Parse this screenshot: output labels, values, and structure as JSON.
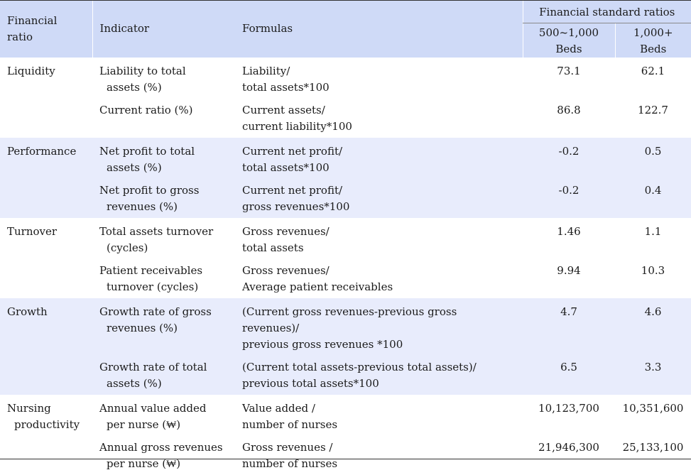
{
  "header": {
    "financial_ratio": "Financial ratio",
    "indicator": "Indicator",
    "formulas": "Formulas",
    "standard_group": "Financial standard ratios",
    "col_500_line1": "500~1,000",
    "col_500_line2": "Beds",
    "col_1000_line1": "1,000+",
    "col_1000_line2": "Beds"
  },
  "groups": [
    {
      "ratio": [
        "Liquidity",
        ""
      ],
      "rows": [
        {
          "indicator": [
            "Liability to total",
            "assets (%)"
          ],
          "formula": [
            "Liability/",
            "total assets*100"
          ],
          "v500": "73.1",
          "v1000": "62.1"
        },
        {
          "indicator": [
            "Current ratio (%)",
            ""
          ],
          "formula": [
            "Current assets/",
            "current liability*100"
          ],
          "v500": "86.8",
          "v1000": "122.7"
        }
      ]
    },
    {
      "ratio": [
        "Performance",
        ""
      ],
      "rows": [
        {
          "indicator": [
            "Net profit to total",
            "assets (%)"
          ],
          "formula": [
            "Current net profit/",
            "total assets*100"
          ],
          "v500": "-0.2",
          "v1000": "0.5"
        },
        {
          "indicator": [
            "Net profit to gross",
            "revenues (%)"
          ],
          "formula": [
            "Current net profit/",
            "gross revenues*100"
          ],
          "v500": "-0.2",
          "v1000": "0.4"
        }
      ]
    },
    {
      "ratio": [
        "Turnover",
        ""
      ],
      "rows": [
        {
          "indicator": [
            "Total assets turnover",
            "(cycles)"
          ],
          "formula": [
            "Gross revenues/",
            "total assets"
          ],
          "v500": "1.46",
          "v1000": "1.1"
        },
        {
          "indicator": [
            "Patient receivables",
            "turnover (cycles)"
          ],
          "formula": [
            "Gross revenues/",
            "Average patient receivables"
          ],
          "v500": "9.94",
          "v1000": "10.3"
        }
      ]
    },
    {
      "ratio": [
        "Growth",
        ""
      ],
      "rows": [
        {
          "indicator": [
            "Growth rate of gross",
            "revenues (%)"
          ],
          "formula": [
            "(Current gross revenues-previous gross revenues)/",
            "previous gross revenues *100"
          ],
          "v500": "4.7",
          "v1000": "4.6"
        },
        {
          "indicator": [
            "Growth rate of total",
            "assets (%)"
          ],
          "formula": [
            "(Current total assets-previous total assets)/",
            "previous total assets*100"
          ],
          "v500": "6.5",
          "v1000": "3.3"
        }
      ]
    },
    {
      "ratio": [
        "Nursing",
        "productivity"
      ],
      "rows": [
        {
          "indicator": [
            "Annual value added",
            "per nurse (₩)"
          ],
          "formula": [
            "Value added /",
            "number of nurses"
          ],
          "v500": "10,123,700",
          "v1000": "10,351,600"
        },
        {
          "indicator": [
            "Annual gross revenues",
            "per nurse (₩)"
          ],
          "formula": [
            "Gross revenues /",
            "number of nurses"
          ],
          "v500": "21,946,300",
          "v1000": "25,133,100"
        }
      ]
    }
  ]
}
